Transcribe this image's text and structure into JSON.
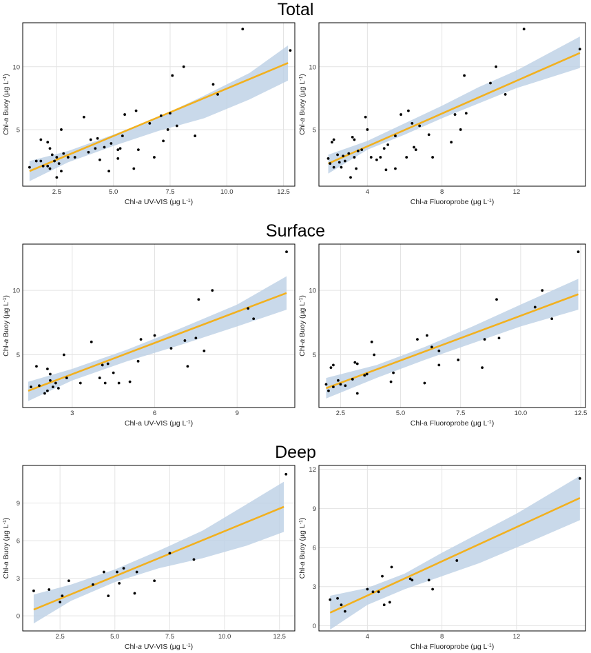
{
  "figure": {
    "colors": {
      "line": "#F2B01E",
      "band": "#BCD0E5",
      "point": "#000000",
      "grid": "#E3E3E3",
      "frame": "#000000"
    },
    "sections": [
      {
        "title": "Total"
      },
      {
        "title": "Surface"
      },
      {
        "title": "Deep"
      }
    ]
  },
  "chart_data": [
    {
      "type": "scatter",
      "section": "Total",
      "position": "left",
      "xlabel_main": "Chl-",
      "xlabel_italic": "a",
      "xlabel_tail": " UV-VIS (µg L",
      "xlabel_sup": "-1",
      "xlabel_end": ")",
      "ylabel_main": "Chl-",
      "ylabel_italic": "a",
      "ylabel_tail": " Buoy (µg L",
      "ylabel_sup": "-1",
      "ylabel_end": ")",
      "xlim": [
        1.0,
        13.0
      ],
      "ylim": [
        0.5,
        13.5
      ],
      "xticks": [
        2.5,
        5.0,
        7.5,
        10.0,
        12.5
      ],
      "xtick_labels": [
        "2.5",
        "5.0",
        "7.5",
        "10.0",
        "12.5"
      ],
      "yticks": [
        5,
        10
      ],
      "ytick_labels": [
        "5",
        "10"
      ],
      "grid": true,
      "fit": {
        "x": [
          1.3,
          12.7
        ],
        "y": [
          1.7,
          10.3
        ]
      },
      "band": {
        "x": [
          1.3,
          3,
          5,
          7,
          9,
          11,
          12.7
        ],
        "lower": [
          0.9,
          2.4,
          3.7,
          4.9,
          5.9,
          7.4,
          8.9
        ],
        "upper": [
          2.5,
          3.3,
          4.6,
          6.0,
          7.7,
          9.5,
          11.7
        ]
      },
      "points": [
        [
          1.3,
          2.0
        ],
        [
          1.6,
          2.5
        ],
        [
          1.8,
          4.2
        ],
        [
          1.8,
          2.5
        ],
        [
          1.9,
          2.1
        ],
        [
          2.1,
          4.0
        ],
        [
          2.1,
          2.1
        ],
        [
          2.2,
          3.5
        ],
        [
          2.2,
          1.9
        ],
        [
          2.3,
          3.0
        ],
        [
          2.4,
          2.5
        ],
        [
          2.5,
          2.8
        ],
        [
          2.5,
          1.2
        ],
        [
          2.6,
          2.3
        ],
        [
          2.7,
          1.7
        ],
        [
          2.7,
          5.0
        ],
        [
          2.8,
          3.1
        ],
        [
          3.0,
          2.8
        ],
        [
          3.3,
          2.8
        ],
        [
          3.7,
          6.0
        ],
        [
          3.9,
          3.2
        ],
        [
          4.0,
          4.2
        ],
        [
          4.2,
          3.5
        ],
        [
          4.3,
          4.3
        ],
        [
          4.4,
          2.6
        ],
        [
          4.6,
          3.6
        ],
        [
          4.8,
          1.7
        ],
        [
          4.9,
          3.9
        ],
        [
          5.2,
          3.4
        ],
        [
          5.2,
          2.7
        ],
        [
          5.3,
          3.5
        ],
        [
          5.4,
          4.5
        ],
        [
          5.5,
          6.2
        ],
        [
          5.9,
          1.9
        ],
        [
          6.0,
          6.5
        ],
        [
          6.1,
          3.4
        ],
        [
          6.6,
          5.5
        ],
        [
          6.8,
          2.8
        ],
        [
          7.1,
          6.1
        ],
        [
          7.2,
          4.1
        ],
        [
          7.4,
          5.0
        ],
        [
          7.5,
          6.3
        ],
        [
          7.6,
          9.3
        ],
        [
          7.8,
          5.3
        ],
        [
          8.1,
          10.0
        ],
        [
          8.6,
          4.5
        ],
        [
          9.4,
          8.6
        ],
        [
          9.6,
          7.8
        ],
        [
          10.7,
          13.0
        ],
        [
          12.8,
          11.3
        ]
      ]
    },
    {
      "type": "scatter",
      "section": "Total",
      "position": "right",
      "xlabel_main": "Chl-",
      "xlabel_italic": "a",
      "xlabel_tail": " Fluoroprobe (µg L",
      "xlabel_sup": "-1",
      "xlabel_end": ")",
      "ylabel_main": "Chl-",
      "ylabel_italic": "a",
      "ylabel_tail": " Buoy (µg L",
      "ylabel_sup": "-1",
      "ylabel_end": ")",
      "xlim": [
        1.4,
        15.7
      ],
      "ylim": [
        0.5,
        13.5
      ],
      "xticks": [
        4,
        8,
        12
      ],
      "xtick_labels": [
        "4",
        "8",
        "12"
      ],
      "yticks": [
        5,
        10
      ],
      "ytick_labels": [
        "5",
        "10"
      ],
      "grid": true,
      "fit": {
        "x": [
          1.9,
          15.4
        ],
        "y": [
          2.3,
          11.1
        ]
      },
      "band": {
        "x": [
          1.9,
          4,
          6,
          8,
          10,
          12,
          15.4
        ],
        "lower": [
          1.5,
          3.4,
          4.6,
          5.9,
          7.1,
          8.3,
          9.9
        ],
        "upper": [
          3.0,
          4.1,
          5.5,
          6.9,
          8.4,
          9.7,
          12.4
        ]
      },
      "points": [
        [
          1.9,
          2.7
        ],
        [
          2.0,
          2.3
        ],
        [
          2.1,
          4.0
        ],
        [
          2.2,
          2.0
        ],
        [
          2.2,
          4.2
        ],
        [
          2.4,
          3.0
        ],
        [
          2.5,
          2.4
        ],
        [
          2.6,
          2.0
        ],
        [
          2.7,
          2.9
        ],
        [
          2.8,
          2.5
        ],
        [
          3.0,
          3.1
        ],
        [
          3.1,
          1.2
        ],
        [
          3.2,
          4.4
        ],
        [
          3.3,
          4.2
        ],
        [
          3.3,
          2.8
        ],
        [
          3.4,
          1.9
        ],
        [
          3.5,
          3.3
        ],
        [
          3.7,
          3.4
        ],
        [
          3.9,
          6.0
        ],
        [
          4.0,
          5.0
        ],
        [
          4.2,
          2.8
        ],
        [
          4.5,
          2.6
        ],
        [
          4.7,
          2.8
        ],
        [
          4.9,
          3.5
        ],
        [
          5.0,
          1.8
        ],
        [
          5.1,
          3.8
        ],
        [
          5.5,
          1.9
        ],
        [
          5.5,
          4.5
        ],
        [
          5.8,
          6.2
        ],
        [
          6.1,
          2.8
        ],
        [
          6.2,
          6.5
        ],
        [
          6.4,
          5.5
        ],
        [
          6.5,
          3.6
        ],
        [
          6.6,
          3.4
        ],
        [
          6.8,
          5.3
        ],
        [
          7.3,
          4.6
        ],
        [
          7.5,
          2.8
        ],
        [
          8.5,
          4.0
        ],
        [
          8.7,
          6.2
        ],
        [
          9.0,
          5.0
        ],
        [
          9.2,
          9.3
        ],
        [
          9.3,
          6.3
        ],
        [
          10.6,
          8.7
        ],
        [
          10.9,
          10.0
        ],
        [
          11.4,
          7.8
        ],
        [
          12.4,
          13.0
        ],
        [
          15.4,
          11.4
        ]
      ]
    },
    {
      "type": "scatter",
      "section": "Surface",
      "position": "left",
      "xlabel_main": "Chl-a UV-VIS (µg L",
      "xlabel_italic": "",
      "xlabel_tail": "",
      "xlabel_sup": "-1",
      "xlabel_end": ")",
      "ylabel_main": "Chl-",
      "ylabel_italic": "a",
      "ylabel_tail": " Buoy (µg L",
      "ylabel_sup": "-1",
      "ylabel_end": ")",
      "xlim": [
        1.2,
        11.1
      ],
      "ylim": [
        0.9,
        13.6
      ],
      "xticks": [
        3,
        6,
        9
      ],
      "xtick_labels": [
        "3",
        "6",
        "9"
      ],
      "yticks": [
        5,
        10
      ],
      "ytick_labels": [
        "5",
        "10"
      ],
      "grid": true,
      "fit": {
        "x": [
          1.4,
          10.8
        ],
        "y": [
          2.2,
          9.8
        ]
      },
      "band": {
        "x": [
          1.4,
          3,
          5,
          7,
          9,
          10.8
        ],
        "lower": [
          1.4,
          3.0,
          4.5,
          5.8,
          7.2,
          8.5
        ],
        "upper": [
          2.9,
          3.9,
          5.4,
          7.1,
          8.9,
          11.1
        ]
      },
      "points": [
        [
          1.5,
          2.5
        ],
        [
          1.7,
          4.1
        ],
        [
          1.8,
          2.6
        ],
        [
          2.0,
          2.0
        ],
        [
          2.1,
          3.9
        ],
        [
          2.1,
          2.2
        ],
        [
          2.2,
          3.5
        ],
        [
          2.2,
          3.0
        ],
        [
          2.3,
          2.5
        ],
        [
          2.4,
          2.8
        ],
        [
          2.5,
          2.4
        ],
        [
          2.7,
          5.0
        ],
        [
          2.8,
          3.2
        ],
        [
          3.3,
          2.8
        ],
        [
          3.7,
          6.0
        ],
        [
          4.0,
          3.2
        ],
        [
          4.1,
          4.2
        ],
        [
          4.2,
          2.8
        ],
        [
          4.3,
          4.3
        ],
        [
          4.5,
          3.6
        ],
        [
          4.7,
          2.8
        ],
        [
          5.1,
          2.9
        ],
        [
          5.4,
          4.5
        ],
        [
          5.5,
          6.2
        ],
        [
          6.0,
          6.5
        ],
        [
          6.6,
          5.5
        ],
        [
          7.1,
          6.1
        ],
        [
          7.2,
          4.1
        ],
        [
          7.5,
          6.3
        ],
        [
          7.6,
          9.3
        ],
        [
          7.8,
          5.3
        ],
        [
          8.1,
          10.0
        ],
        [
          9.4,
          8.6
        ],
        [
          9.6,
          7.8
        ],
        [
          10.8,
          13.0
        ]
      ]
    },
    {
      "type": "scatter",
      "section": "Surface",
      "position": "right",
      "xlabel_main": "Chl-a Fluoroprobe (µg L",
      "xlabel_italic": "",
      "xlabel_tail": "",
      "xlabel_sup": "-1",
      "xlabel_end": ")",
      "ylabel_main": "Chl-",
      "ylabel_italic": "a",
      "ylabel_tail": " Buoy (µg L",
      "ylabel_sup": "-1",
      "ylabel_end": ")",
      "xlim": [
        1.6,
        12.7
      ],
      "ylim": [
        0.9,
        13.6
      ],
      "xticks": [
        2.5,
        5.0,
        7.5,
        10.0,
        12.5
      ],
      "xtick_labels": [
        "2.5",
        "5.0",
        "7.5",
        "10.0",
        "12.5"
      ],
      "yticks": [
        5,
        10
      ],
      "ytick_labels": [
        "5",
        "10"
      ],
      "grid": true,
      "fit": {
        "x": [
          1.9,
          12.4
        ],
        "y": [
          2.4,
          9.7
        ]
      },
      "band": {
        "x": [
          1.9,
          4,
          6,
          8,
          10,
          12.4
        ],
        "lower": [
          1.6,
          3.2,
          4.6,
          5.9,
          7.2,
          8.5
        ],
        "upper": [
          3.2,
          4.2,
          5.6,
          7.2,
          8.9,
          10.9
        ]
      },
      "points": [
        [
          1.9,
          2.7
        ],
        [
          2.0,
          2.2
        ],
        [
          2.1,
          4.0
        ],
        [
          2.2,
          2.5
        ],
        [
          2.2,
          4.2
        ],
        [
          2.4,
          3.0
        ],
        [
          2.5,
          2.7
        ],
        [
          2.7,
          2.6
        ],
        [
          3.0,
          3.1
        ],
        [
          3.1,
          4.4
        ],
        [
          3.2,
          4.3
        ],
        [
          3.2,
          2.0
        ],
        [
          3.5,
          3.4
        ],
        [
          3.6,
          3.5
        ],
        [
          3.8,
          6.0
        ],
        [
          3.9,
          5.0
        ],
        [
          4.6,
          2.9
        ],
        [
          4.7,
          3.6
        ],
        [
          5.7,
          6.2
        ],
        [
          6.0,
          2.8
        ],
        [
          6.1,
          6.5
        ],
        [
          6.3,
          5.6
        ],
        [
          6.6,
          4.2
        ],
        [
          6.6,
          5.3
        ],
        [
          7.4,
          4.6
        ],
        [
          8.4,
          4.0
        ],
        [
          8.5,
          6.2
        ],
        [
          9.0,
          9.3
        ],
        [
          9.1,
          6.3
        ],
        [
          10.6,
          8.7
        ],
        [
          10.9,
          10.0
        ],
        [
          11.3,
          7.8
        ],
        [
          12.4,
          13.0
        ]
      ]
    },
    {
      "type": "scatter",
      "section": "Deep",
      "position": "left",
      "xlabel_main": "Chl-",
      "xlabel_italic": "a",
      "xlabel_tail": " UV-VIS (µg L",
      "xlabel_sup": "-1",
      "xlabel_end": ")",
      "ylabel_main": "Chl-",
      "ylabel_italic": "a",
      "ylabel_tail": " Buoy (µg L",
      "ylabel_sup": "-1",
      "ylabel_end": ")",
      "xlim": [
        0.8,
        13.2
      ],
      "ylim": [
        -1.2,
        12.0
      ],
      "xticks": [
        2.5,
        5.0,
        7.5,
        10.0,
        12.5
      ],
      "xtick_labels": [
        "2.5",
        "5.0",
        "7.5",
        "10.0",
        "12.5"
      ],
      "yticks": [
        0,
        3,
        6,
        9
      ],
      "ytick_labels": [
        "0",
        "3",
        "6",
        "9"
      ],
      "grid": true,
      "fit": {
        "x": [
          1.3,
          12.7
        ],
        "y": [
          0.5,
          8.7
        ]
      },
      "band": {
        "x": [
          1.3,
          3,
          5,
          7,
          9,
          11,
          12.7
        ],
        "lower": [
          -0.6,
          1.2,
          2.7,
          3.8,
          4.6,
          5.6,
          6.7
        ],
        "upper": [
          1.7,
          2.5,
          3.7,
          5.2,
          6.8,
          8.9,
          10.7
        ]
      },
      "points": [
        [
          1.3,
          2.0
        ],
        [
          2.0,
          2.1
        ],
        [
          2.5,
          1.1
        ],
        [
          2.6,
          1.6
        ],
        [
          2.9,
          2.8
        ],
        [
          4.0,
          2.5
        ],
        [
          4.5,
          3.5
        ],
        [
          4.7,
          1.6
        ],
        [
          5.1,
          3.5
        ],
        [
          5.2,
          2.6
        ],
        [
          5.4,
          3.8
        ],
        [
          5.9,
          1.8
        ],
        [
          6.0,
          3.5
        ],
        [
          6.8,
          2.8
        ],
        [
          7.5,
          5.0
        ],
        [
          8.6,
          4.5
        ],
        [
          12.8,
          11.3
        ]
      ]
    },
    {
      "type": "scatter",
      "section": "Deep",
      "position": "right",
      "xlabel_main": "Chl-",
      "xlabel_italic": "a",
      "xlabel_tail": " Fluoroprobe (µg L",
      "xlabel_sup": "-1",
      "xlabel_end": ")",
      "ylabel_main": "Chl-",
      "ylabel_italic": "a",
      "ylabel_tail": " Buoy (µg L",
      "ylabel_sup": "-1",
      "ylabel_end": ")",
      "xlim": [
        1.4,
        15.7
      ],
      "ylim": [
        -0.4,
        12.3
      ],
      "xticks": [
        4,
        8,
        12
      ],
      "xtick_labels": [
        "4",
        "8",
        "12"
      ],
      "yticks": [
        0,
        3,
        6,
        9,
        12
      ],
      "ytick_labels": [
        "0",
        "3",
        "6",
        "9",
        "12"
      ],
      "grid": true,
      "fit": {
        "x": [
          2.0,
          15.4
        ],
        "y": [
          1.0,
          9.8
        ]
      },
      "band": {
        "x": [
          2.0,
          4,
          6,
          8,
          10,
          12,
          15.4
        ],
        "lower": [
          -0.3,
          1.6,
          2.8,
          3.8,
          4.8,
          6.0,
          8.1
        ],
        "upper": [
          2.3,
          2.9,
          4.0,
          5.6,
          7.1,
          8.6,
          11.5
        ]
      },
      "points": [
        [
          2.0,
          2.0
        ],
        [
          2.4,
          2.1
        ],
        [
          2.6,
          1.6
        ],
        [
          2.8,
          1.1
        ],
        [
          4.0,
          2.8
        ],
        [
          4.3,
          2.6
        ],
        [
          4.6,
          2.6
        ],
        [
          4.8,
          3.8
        ],
        [
          4.9,
          1.6
        ],
        [
          5.2,
          1.8
        ],
        [
          5.3,
          4.5
        ],
        [
          6.3,
          3.6
        ],
        [
          6.4,
          3.5
        ],
        [
          7.3,
          3.5
        ],
        [
          7.5,
          2.8
        ],
        [
          8.8,
          5.0
        ],
        [
          15.4,
          11.3
        ]
      ]
    }
  ]
}
